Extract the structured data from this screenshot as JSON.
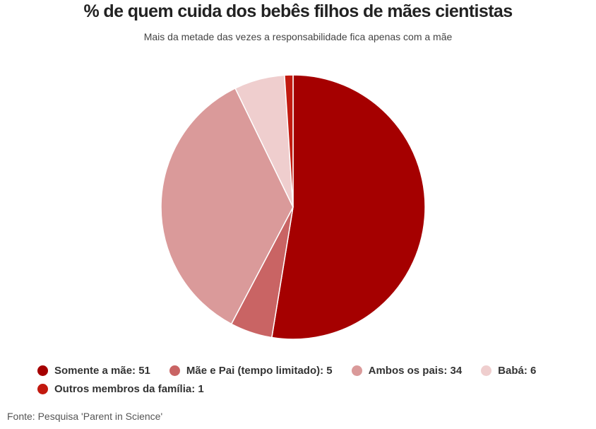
{
  "chart_data": {
    "type": "pie",
    "title": "% de quem cuida dos bebês filhos de mães cientistas",
    "subtitle": "Mais da metade das vezes a responsabilidade fica apenas com a mãe",
    "source": "Fonte: Pesquisa 'Parent in Science'",
    "legend_position": "bottom",
    "slices": [
      {
        "label": "Somente a mãe",
        "value": 51,
        "color": "#a50000",
        "legend_text": "Somente a mãe: 51"
      },
      {
        "label": "Mãe e Pai (tempo limitado)",
        "value": 5,
        "color": "#c96464",
        "legend_text": "Mãe e Pai (tempo limitado): 5"
      },
      {
        "label": "Ambos os pais",
        "value": 34,
        "color": "#da9a9a",
        "legend_text": "Ambos os pais: 34"
      },
      {
        "label": "Babá",
        "value": 6,
        "color": "#efcece",
        "legend_text": "Babá: 6"
      },
      {
        "label": "Outros membros da família",
        "value": 1,
        "color": "#c2190f",
        "legend_text": "Outros membros da família: 1"
      }
    ]
  }
}
